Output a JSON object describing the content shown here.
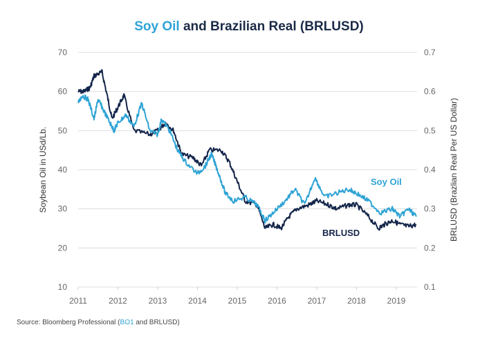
{
  "title": {
    "highlight": "Soy Oil",
    "rest": " and Brazilian Real (BRLUSD)"
  },
  "source": {
    "prefix": "Source: Bloomberg Professional (",
    "highlight": "BO1",
    "suffix": " and BRLUSD)"
  },
  "colors": {
    "soy_oil": "#2ea3d5",
    "brlusd": "#14254a",
    "grid": "#dddddd"
  },
  "chart_data": {
    "type": "line",
    "title": "Soy Oil and Brazilian Real (BRLUSD)",
    "xlabel": "",
    "ylabel": "Soybean Oil in USd/Lb.",
    "y2label": "BRLUSD (Brazlian Real Per US Dollar)",
    "xlim": [
      2011,
      2019.5
    ],
    "ylim": [
      10,
      70
    ],
    "y2lim": [
      0.1,
      0.7
    ],
    "xticks": [
      "2011",
      "2012",
      "2013",
      "2014",
      "2015",
      "2016",
      "2017",
      "2018",
      "2019"
    ],
    "yticks": [
      "10",
      "20",
      "30",
      "40",
      "50",
      "60",
      "70"
    ],
    "y2ticks": [
      "0.1",
      "0.2",
      "0.3",
      "0.4",
      "0.5",
      "0.6",
      "0.7"
    ],
    "grid": true,
    "series": [
      {
        "name": "Soy Oil",
        "axis": "left",
        "label": "Soy Oil",
        "x": [
          2011.0,
          2011.1,
          2011.25,
          2011.4,
          2011.5,
          2011.6,
          2011.8,
          2011.9,
          2012.0,
          2012.2,
          2012.4,
          2012.6,
          2012.8,
          2013.0,
          2013.1,
          2013.3,
          2013.5,
          2013.7,
          2014.0,
          2014.2,
          2014.35,
          2014.5,
          2014.7,
          2014.9,
          2015.2,
          2015.5,
          2015.7,
          2015.9,
          2016.2,
          2016.45,
          2016.7,
          2016.95,
          2017.2,
          2017.5,
          2017.8,
          2018.0,
          2018.3,
          2018.6,
          2018.9,
          2019.1,
          2019.3,
          2019.5
        ],
        "values": [
          57,
          59,
          58,
          53,
          58,
          56,
          52,
          50,
          52,
          54,
          51,
          57,
          50,
          49,
          53,
          50,
          45,
          42,
          39,
          41,
          44,
          40,
          34,
          32,
          33,
          31,
          27,
          29,
          32,
          35,
          31,
          38,
          33,
          34,
          35,
          34,
          32,
          29,
          30,
          28,
          30,
          28
        ]
      },
      {
        "name": "BRLUSD",
        "axis": "right",
        "label": "BRLUSD",
        "x": [
          2011.0,
          2011.15,
          2011.3,
          2011.4,
          2011.6,
          2011.75,
          2011.85,
          2012.0,
          2012.15,
          2012.4,
          2012.8,
          2013.0,
          2013.2,
          2013.4,
          2013.6,
          2013.9,
          2014.1,
          2014.3,
          2014.6,
          2014.8,
          2015.0,
          2015.2,
          2015.5,
          2015.7,
          2015.9,
          2016.1,
          2016.3,
          2016.5,
          2016.8,
          2017.0,
          2017.3,
          2017.5,
          2017.8,
          2018.0,
          2018.3,
          2018.55,
          2018.7,
          2018.9,
          2019.1,
          2019.3,
          2019.5
        ],
        "values": [
          0.6,
          0.6,
          0.61,
          0.64,
          0.65,
          0.58,
          0.53,
          0.56,
          0.59,
          0.5,
          0.49,
          0.5,
          0.52,
          0.5,
          0.44,
          0.43,
          0.41,
          0.45,
          0.45,
          0.42,
          0.37,
          0.32,
          0.31,
          0.25,
          0.26,
          0.25,
          0.28,
          0.3,
          0.31,
          0.32,
          0.31,
          0.3,
          0.31,
          0.31,
          0.28,
          0.25,
          0.26,
          0.27,
          0.26,
          0.255,
          0.26
        ]
      }
    ]
  }
}
